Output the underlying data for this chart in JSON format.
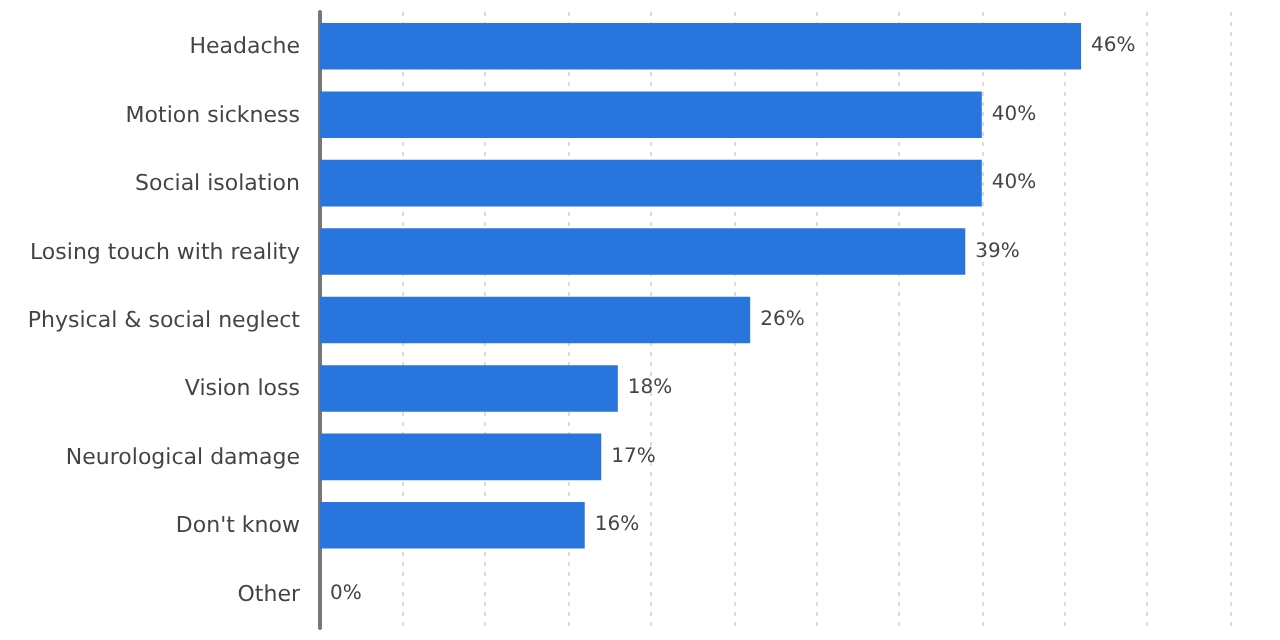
{
  "chart_data": {
    "type": "bar",
    "orientation": "horizontal",
    "categories": [
      "Headache",
      "Motion sickness",
      "Social isolation",
      "Losing touch with reality",
      "Physical & social neglect",
      "Vision loss",
      "Neurological damage",
      "Don't know",
      "Other"
    ],
    "values": [
      46,
      40,
      40,
      39,
      26,
      18,
      17,
      16,
      0
    ],
    "color": "#2876dd",
    "value_labels": [
      "46%",
      "40%",
      "40%",
      "39%",
      "26%",
      "18%",
      "17%",
      "16%",
      "0%"
    ],
    "xlim": [
      0,
      55
    ],
    "xticks": [
      {
        "value": 0,
        "label": null
      },
      {
        "value": 5,
        "label": null
      },
      {
        "value": 10,
        "label": null
      },
      {
        "value": 15,
        "label": null
      },
      {
        "value": 20,
        "label": null
      },
      {
        "value": 25,
        "label": null
      },
      {
        "value": 30,
        "label": null
      },
      {
        "value": 35,
        "label": null
      },
      {
        "value": 40,
        "label": null
      },
      {
        "value": 45,
        "label": null
      },
      {
        "value": 50,
        "label": null
      },
      {
        "value": 55,
        "label": null
      }
    ],
    "grid": "x",
    "tick_labels": "y"
  }
}
